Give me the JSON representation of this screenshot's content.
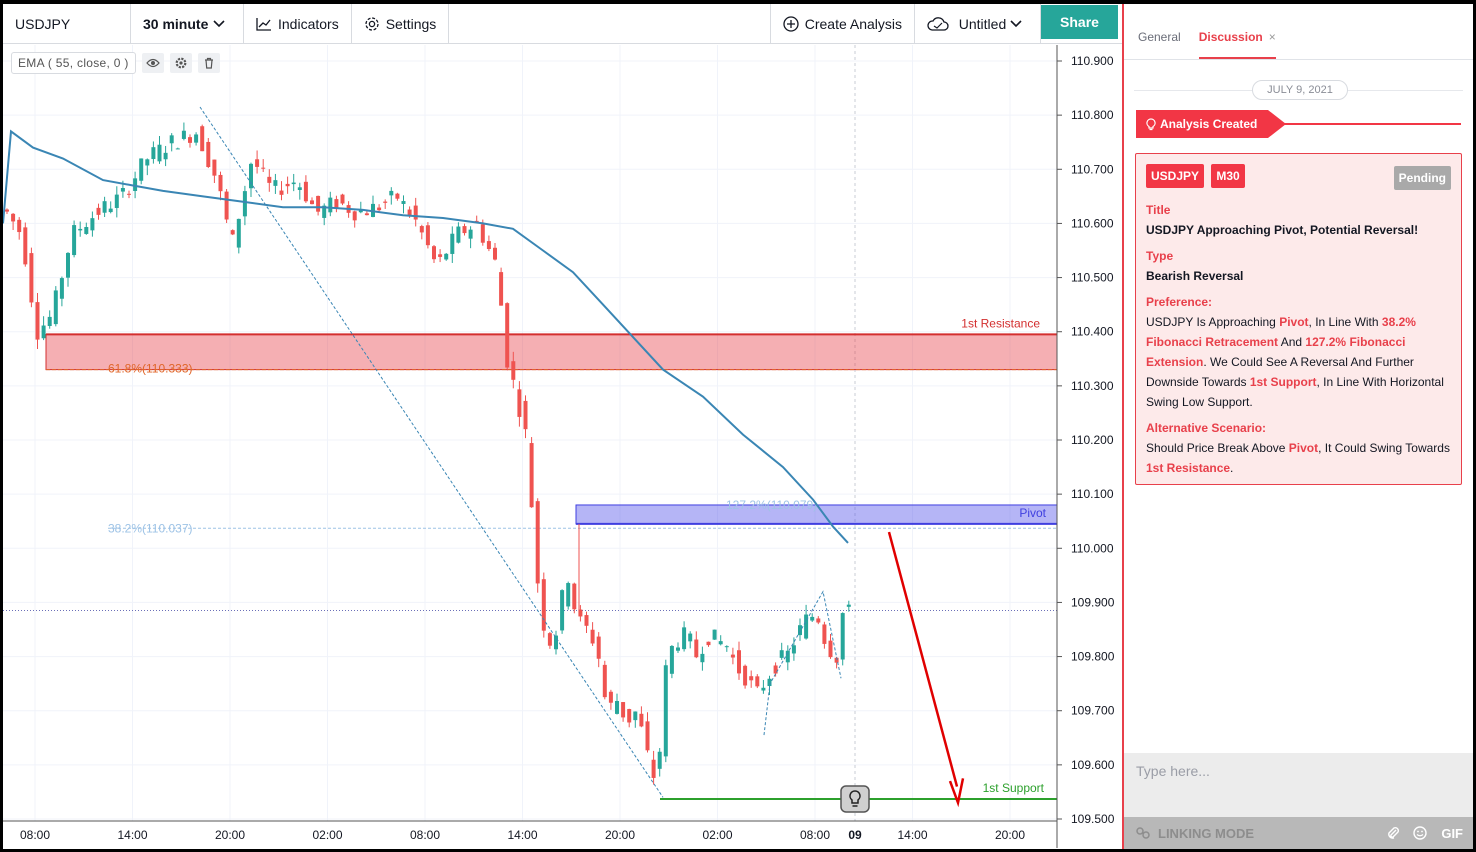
{
  "toolbar": {
    "symbol": "USDJPY",
    "interval": "30 minute",
    "indicators_label": "Indicators",
    "settings_label": "Settings",
    "create_analysis_label": "Create Analysis",
    "layout_name": "Untitled",
    "share_label": "Share"
  },
  "ema_legend": {
    "label": "EMA ( 55, close, 0 )",
    "icons": [
      "eye-icon",
      "gear-icon",
      "trash-icon"
    ]
  },
  "chart": {
    "price_axis": [
      "110.900",
      "110.800",
      "110.700",
      "110.600",
      "110.500",
      "110.400",
      "110.300",
      "110.200",
      "110.100",
      "110.000",
      "109.900",
      "109.800",
      "109.700",
      "109.600",
      "109.500"
    ],
    "time_axis": [
      "08:00",
      "14:00",
      "20:00",
      "02:00",
      "08:00",
      "14:00",
      "20:00",
      "02:00",
      "08:00",
      "09",
      "14:00",
      "20:00"
    ],
    "labels": {
      "resistance": "1st Resistance",
      "fib618": "61.8%(110.333)",
      "fib382": "38.2%(110.037)",
      "fib1272": "127.2%(110.079)",
      "pivot": "Pivot",
      "support": "1st Support"
    },
    "colors": {
      "up": "#26a69a",
      "down": "#ef5350",
      "ema": "#3a86b4",
      "resistance": "#d32f2f",
      "pivot": "#3f3fe0",
      "support": "#2ca02c",
      "arrow": "#e00000"
    }
  },
  "panel": {
    "tabs": [
      "General",
      "Discussion"
    ],
    "active_tab": "Discussion",
    "date": "JULY 9, 2021",
    "flag": "Analysis Created",
    "card": {
      "symbol": "USDJPY",
      "timeframe": "M30",
      "status": "Pending",
      "title_label": "Title",
      "title": "USDJPY Approaching Pivot, Potential Reversal!",
      "type_label": "Type",
      "type": "Bearish Reversal",
      "preference_label": "Preference:",
      "preference": {
        "p1": "USDJPY Is Approaching ",
        "h1": "Pivot",
        "p2": ", In Line With ",
        "h2": "38.2% Fibonacci Retracement",
        "p3": " And ",
        "h3": "127.2% Fibonacci Extension",
        "p4": ". We Could See A Reversal And Further Downside Towards ",
        "h4": "1st Support",
        "p5": ", In Line With Horizontal Swing Low Support."
      },
      "alt_label": "Alternative Scenario:",
      "alt": {
        "p1": "Should Price Break Above ",
        "h1": "Pivot",
        "p2": ", It Could Swing Towards ",
        "h2": "1st Resistance",
        "p3": "."
      }
    },
    "input_placeholder": "Type here...",
    "linking_mode": "LINKING MODE",
    "gif_label": "GIF"
  }
}
